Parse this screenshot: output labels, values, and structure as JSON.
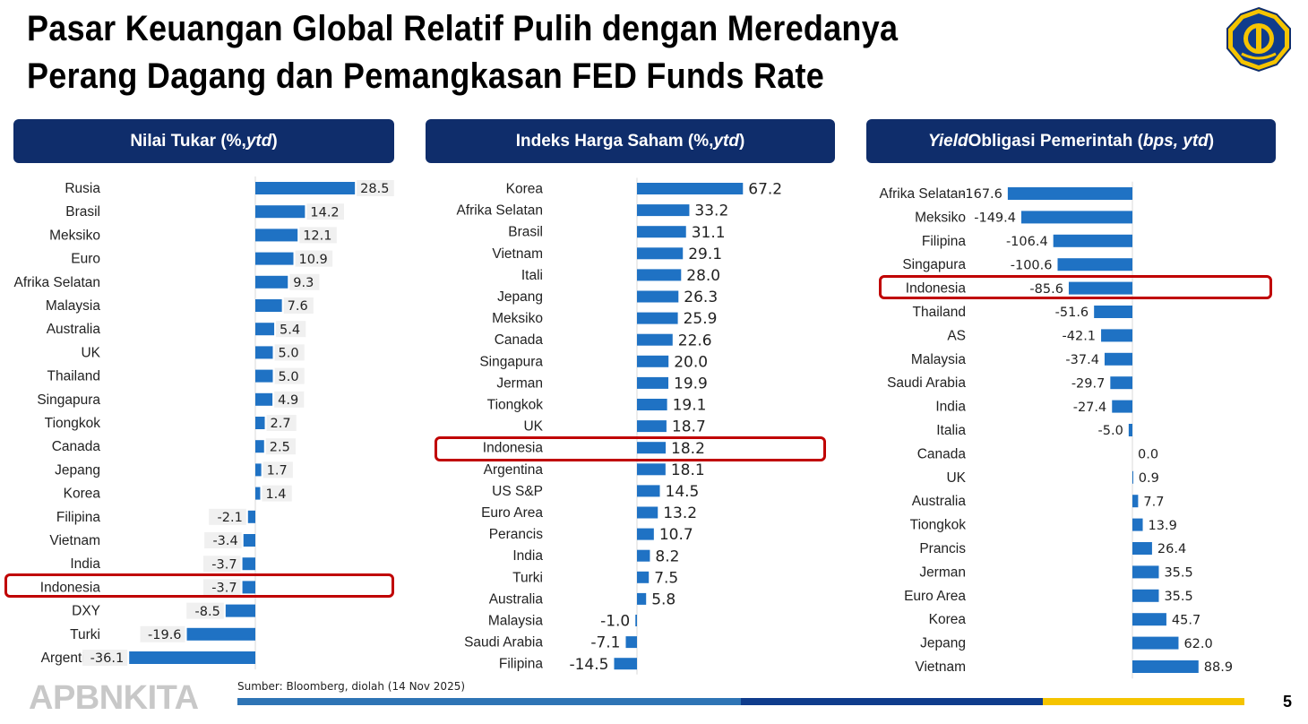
{
  "slide": {
    "title_line1": "Pasar Keuangan Global Relatif Pulih dengan Meredanya",
    "title_line2": "Perang Dagang dan Pemangkasan FED Funds Rate",
    "source": "Sumber: Bloomberg, diolah (14 Nov 2025)",
    "brand": "APBNKITA",
    "page_number": "5",
    "header_color": "#0f2d6b",
    "bar_color": "#1f72c4",
    "highlight_color": "#c00000",
    "footer_colors": [
      "#2e74b5",
      "#0f3c8c",
      "#f5c400"
    ]
  },
  "panels": [
    {
      "prefix": "Nilai Tukar (%, ",
      "italic": "ytd",
      "suffix": ")"
    },
    {
      "prefix": "Indeks Harga Saham (%, ",
      "italic": "ytd",
      "suffix": ")"
    },
    {
      "italic_prefix": "Yield",
      "prefix": " Obligasi Pemerintah (",
      "italic": "bps, ytd",
      "suffix": ")"
    }
  ],
  "chart_data": [
    {
      "type": "bar",
      "orientation": "horizontal",
      "highlight": "Indonesia",
      "categories": [
        "Rusia",
        "Brasil",
        "Meksiko",
        "Euro",
        "Afrika Selatan",
        "Malaysia",
        "Australia",
        "UK",
        "Thailand",
        "Singapura",
        "Tiongkok",
        "Canada",
        "Jepang",
        "Korea",
        "Filipina",
        "Vietnam",
        "India",
        "Indonesia",
        "DXY",
        "Turki",
        "Argentina"
      ],
      "values": [
        28.5,
        14.2,
        12.1,
        10.9,
        9.3,
        7.6,
        5.4,
        5.0,
        5.0,
        4.9,
        2.7,
        2.5,
        1.7,
        1.4,
        -2.1,
        -3.4,
        -3.7,
        -3.7,
        -8.5,
        -19.6,
        -36.1
      ],
      "labels": [
        "28.5",
        "14.2",
        "12.1",
        "10.9",
        "9.3",
        "7.6",
        "5.4",
        "5.0",
        "5.0",
        "4.9",
        "2.7",
        "2.5",
        "1.7",
        "1.4",
        "-2.1",
        "-3.4",
        "-3.7",
        "-3.7",
        "-8.5",
        "-19.6",
        "-36.1"
      ]
    },
    {
      "type": "bar",
      "orientation": "horizontal",
      "highlight": "Indonesia",
      "categories": [
        "Korea",
        "Afrika Selatan",
        "Brasil",
        "Vietnam",
        "Itali",
        "Jepang",
        "Meksiko",
        "Canada",
        "Singapura",
        "Jerman",
        "Tiongkok",
        "UK",
        "Indonesia",
        "Argentina",
        "US S&P",
        "Euro Area",
        "Perancis",
        "India",
        "Turki",
        "Australia",
        "Malaysia",
        "Saudi Arabia",
        "Filipina"
      ],
      "values": [
        67.2,
        33.2,
        31.1,
        29.1,
        28.0,
        26.3,
        25.9,
        22.6,
        20.0,
        19.9,
        19.1,
        18.7,
        18.2,
        18.1,
        14.5,
        13.2,
        10.7,
        8.2,
        7.5,
        5.8,
        -1.0,
        -7.1,
        -14.5
      ],
      "labels": [
        "67.2",
        "33.2",
        "31.1",
        "29.1",
        "28.0",
        "26.3",
        "25.9",
        "22.6",
        "20.0",
        "19.9",
        "19.1",
        "18.7",
        "18.2",
        "18.1",
        "14.5",
        "13.2",
        "10.7",
        "8.2",
        "7.5",
        "5.8",
        "-1.0",
        "-7.1",
        "-14.5"
      ]
    },
    {
      "type": "bar",
      "orientation": "horizontal",
      "highlight": "Indonesia",
      "categories": [
        "Afrika Selatan",
        "Meksiko",
        "Filipina",
        "Singapura",
        "Indonesia",
        "Thailand",
        "AS",
        "Malaysia",
        "Saudi Arabia",
        "India",
        "Italia",
        "Canada",
        "UK",
        "Australia",
        "Tiongkok",
        "Prancis",
        "Jerman",
        "Euro Area",
        "Korea",
        "Jepang",
        "Vietnam"
      ],
      "values": [
        -167.6,
        -149.4,
        -106.4,
        -100.6,
        -85.6,
        -51.6,
        -42.1,
        -37.4,
        -29.7,
        -27.4,
        -5.0,
        0.0,
        0.9,
        7.7,
        13.9,
        26.4,
        35.5,
        35.5,
        45.7,
        62.0,
        88.9
      ],
      "labels": [
        "-167.6",
        "-149.4",
        "-106.4",
        "-100.6",
        "-85.6",
        "-51.6",
        "-42.1",
        "-37.4",
        "-29.7",
        "-27.4",
        "-5.0",
        "0.0",
        "0.9",
        "7.7",
        "13.9",
        "26.4",
        "35.5",
        "35.5",
        "45.7",
        "62.0",
        "88.9"
      ]
    }
  ]
}
